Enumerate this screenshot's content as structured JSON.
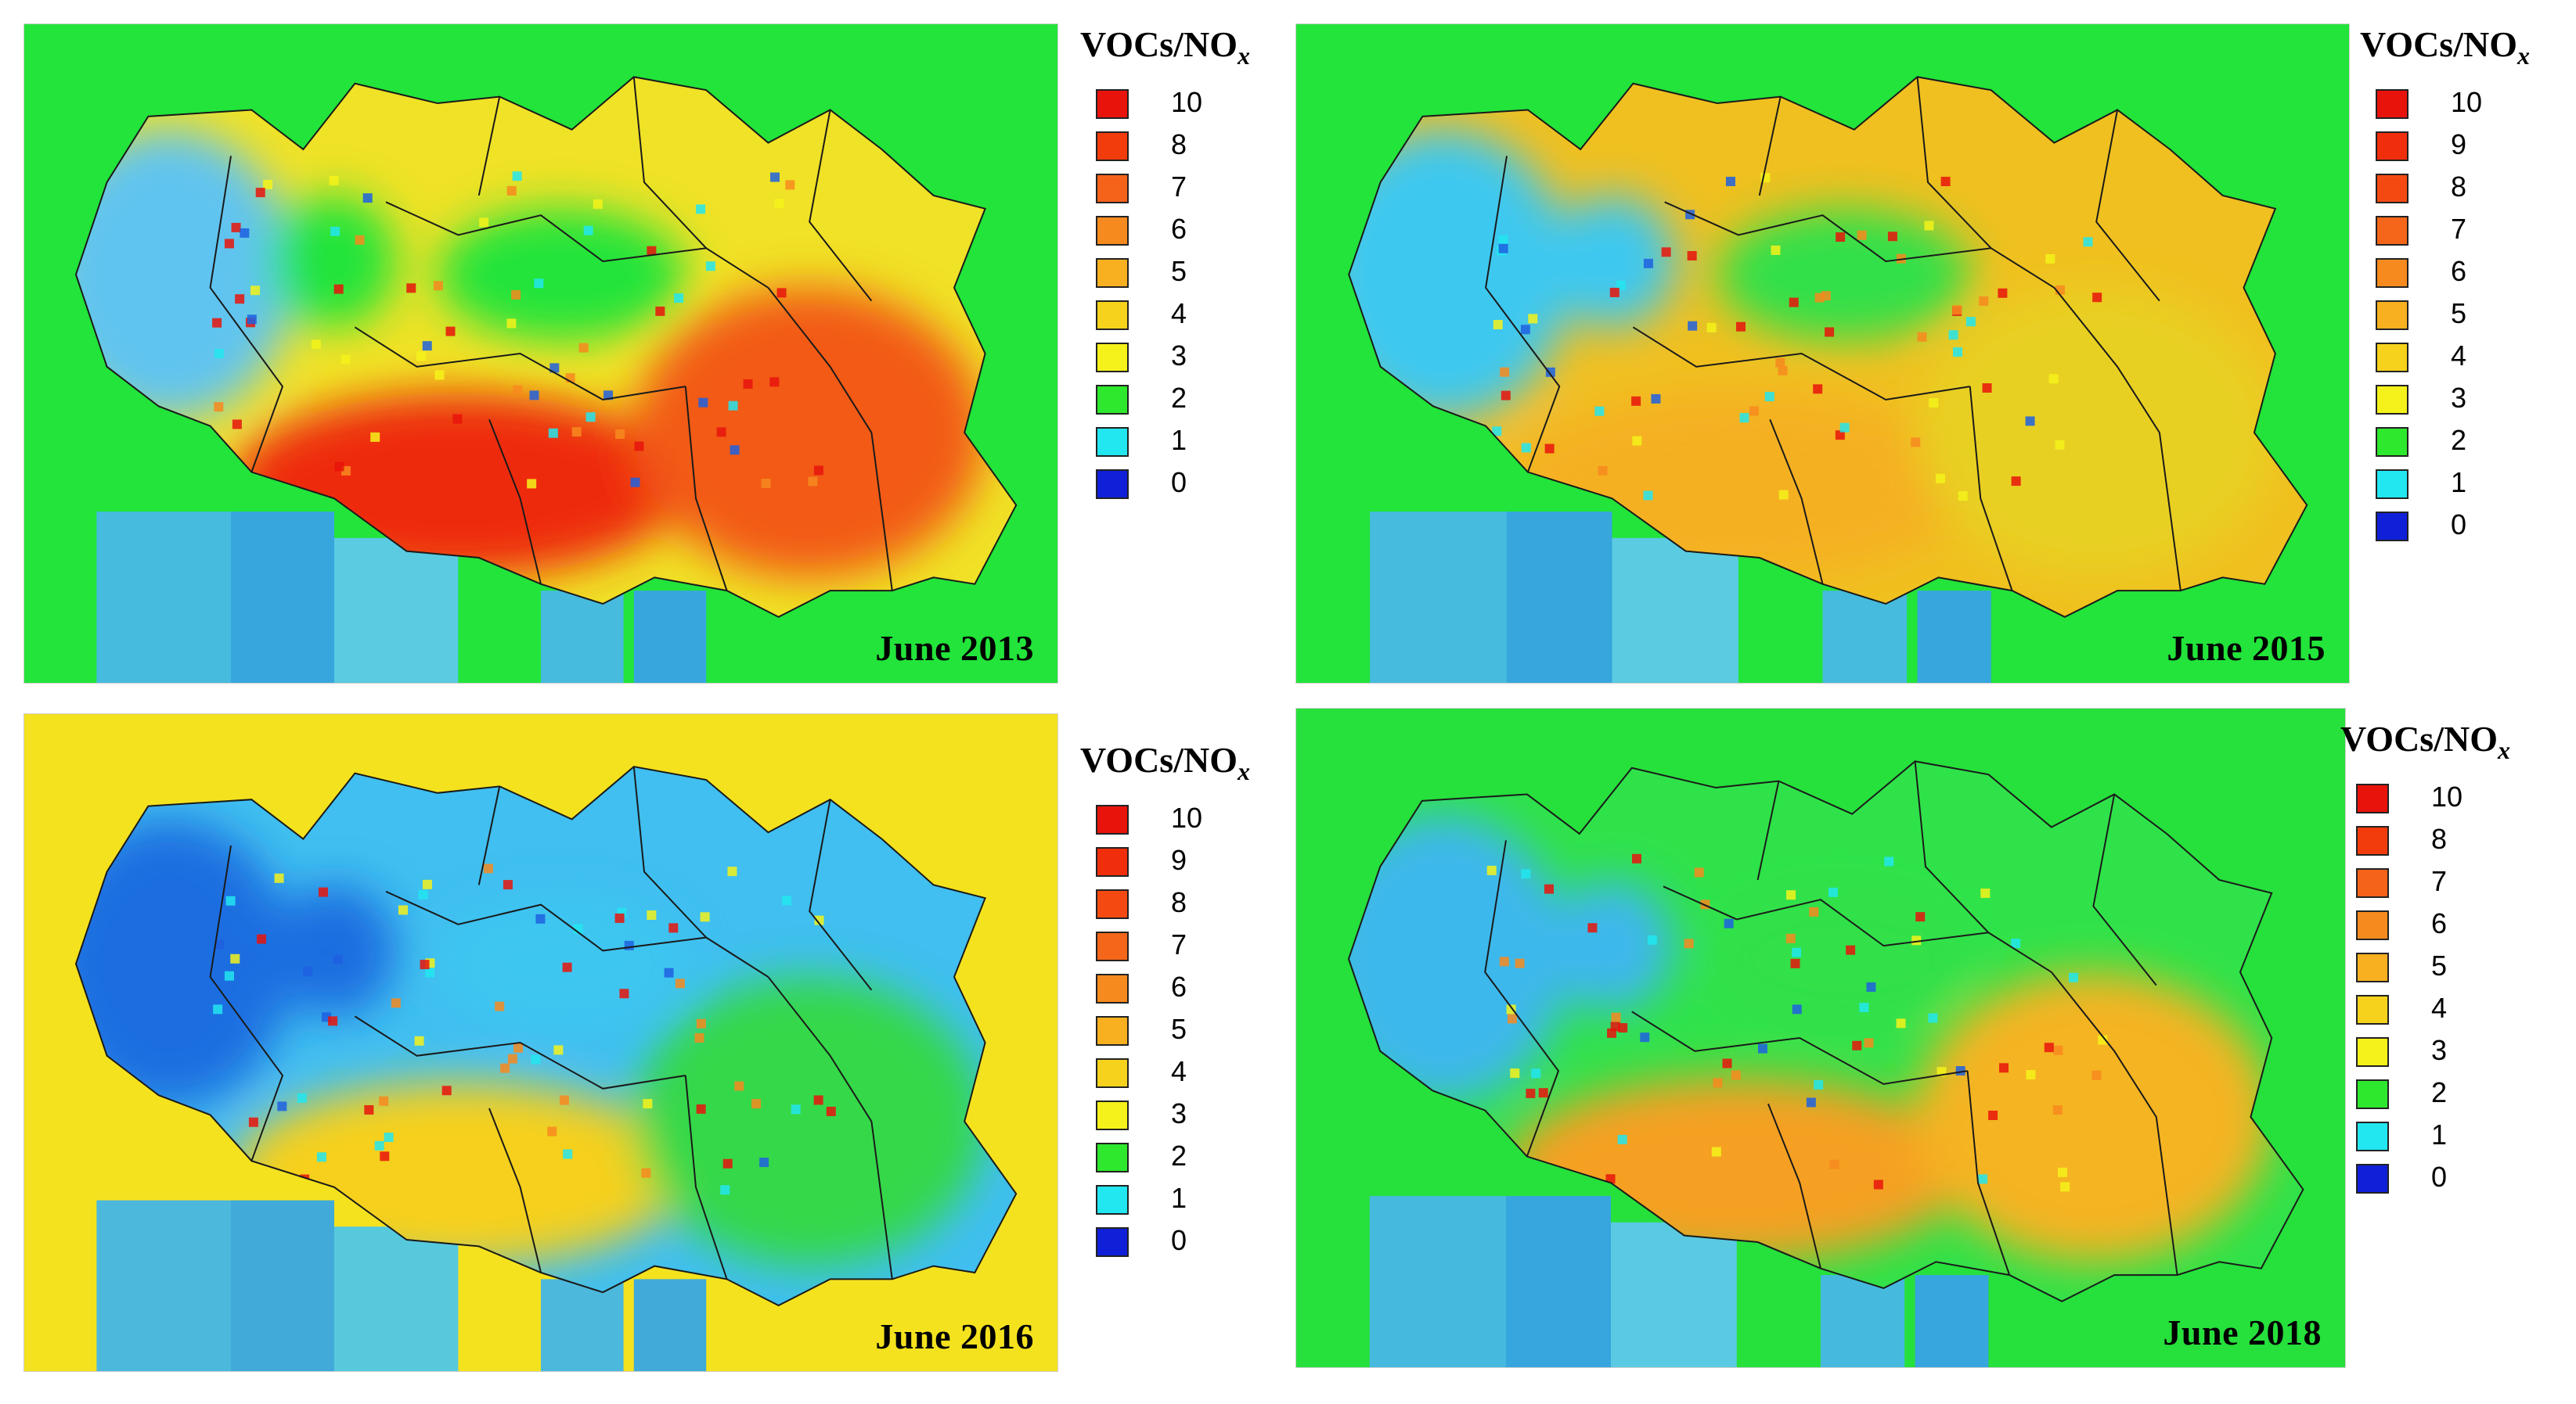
{
  "panels": [
    {
      "title": "June 2013",
      "legend_title": "VOCs/NO",
      "legend_subscript": "x",
      "legend": [
        {
          "label": "10",
          "color": "#e8140c"
        },
        {
          "label": "8",
          "color": "#f23c0c"
        },
        {
          "label": "7",
          "color": "#f5621a"
        },
        {
          "label": "6",
          "color": "#f78a1e"
        },
        {
          "label": "5",
          "color": "#f8b020"
        },
        {
          "label": "4",
          "color": "#f6d21c"
        },
        {
          "label": "3",
          "color": "#f4f21a"
        },
        {
          "label": "2",
          "color": "#2ee82e"
        },
        {
          "label": "1",
          "color": "#22e6f0"
        },
        {
          "label": "0",
          "color": "#1020d8"
        }
      ],
      "dominant": {
        "south": "#ee2a10",
        "southeast": "#f25a12",
        "northwest": "#60c4f0",
        "center": "#f0e226",
        "background": "#22e43a"
      }
    },
    {
      "title": "June 2015",
      "legend_title": "VOCs/NO",
      "legend_subscript": "x",
      "legend": [
        {
          "label": "10",
          "color": "#e8140c"
        },
        {
          "label": "9",
          "color": "#f02e0c"
        },
        {
          "label": "8",
          "color": "#f44a12"
        },
        {
          "label": "7",
          "color": "#f5661a"
        },
        {
          "label": "6",
          "color": "#f78a1e"
        },
        {
          "label": "5",
          "color": "#f8b020"
        },
        {
          "label": "4",
          "color": "#f6d21c"
        },
        {
          "label": "3",
          "color": "#f4f21a"
        },
        {
          "label": "2",
          "color": "#2ee82e"
        },
        {
          "label": "1",
          "color": "#22e6f0"
        },
        {
          "label": "0",
          "color": "#1020d8"
        }
      ],
      "dominant": {
        "south": "#f5b020",
        "southeast": "#e8d024",
        "northwest": "#3ec8f0",
        "center": "#f0c020",
        "background": "#22e43a"
      }
    },
    {
      "title": "June 2016",
      "legend_title": "VOCs/NO",
      "legend_subscript": "x",
      "legend": [
        {
          "label": "10",
          "color": "#e8140c"
        },
        {
          "label": "9",
          "color": "#f02e0c"
        },
        {
          "label": "8",
          "color": "#f44a12"
        },
        {
          "label": "7",
          "color": "#f5661a"
        },
        {
          "label": "6",
          "color": "#f78a1e"
        },
        {
          "label": "5",
          "color": "#f8b020"
        },
        {
          "label": "4",
          "color": "#f6d21c"
        },
        {
          "label": "3",
          "color": "#f4f21a"
        },
        {
          "label": "2",
          "color": "#2ee82e"
        },
        {
          "label": "1",
          "color": "#22e6f0"
        },
        {
          "label": "0",
          "color": "#1020d8"
        }
      ],
      "dominant": {
        "south": "#f6d01c",
        "southeast": "#36d84a",
        "northwest": "#1e6ee0",
        "center": "#40bff0",
        "background": "#f4e21e"
      }
    },
    {
      "title": "June 2018",
      "legend_title": "VOCs/NO",
      "legend_subscript": "x",
      "legend": [
        {
          "label": "10",
          "color": "#e8140c"
        },
        {
          "label": "8",
          "color": "#f23c0c"
        },
        {
          "label": "7",
          "color": "#f5621a"
        },
        {
          "label": "6",
          "color": "#f78a1e"
        },
        {
          "label": "5",
          "color": "#f8b020"
        },
        {
          "label": "4",
          "color": "#f6d21c"
        },
        {
          "label": "3",
          "color": "#f4f21a"
        },
        {
          "label": "2",
          "color": "#2ee82e"
        },
        {
          "label": "1",
          "color": "#22e6f0"
        },
        {
          "label": "0",
          "color": "#1020d8"
        }
      ],
      "dominant": {
        "south": "#f5a020",
        "southeast": "#f5b424",
        "northwest": "#3cb8ec",
        "center": "#30e24a",
        "background": "#26e03c"
      }
    }
  ]
}
